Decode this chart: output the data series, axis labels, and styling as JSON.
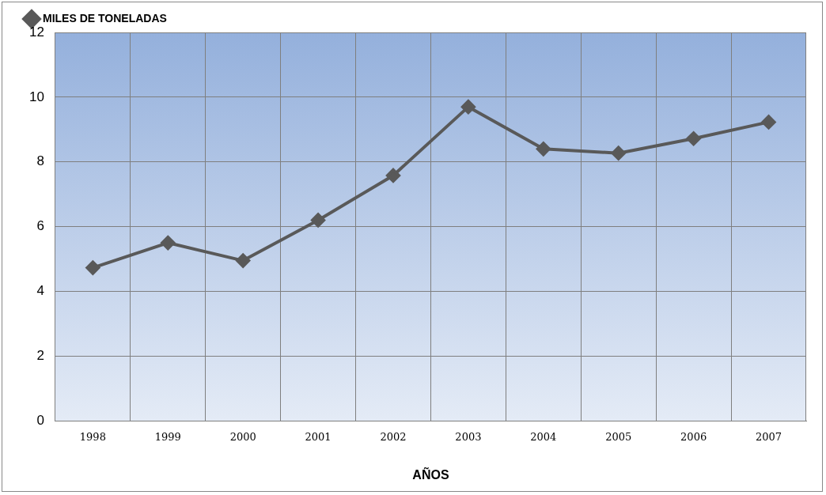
{
  "chart_data": {
    "type": "line",
    "xlabel": "AÑOS",
    "categories": [
      "1998",
      "1999",
      "2000",
      "2001",
      "2002",
      "2003",
      "2004",
      "2005",
      "2006",
      "2007"
    ],
    "series": [
      {
        "name": "MILES DE TONELADAS",
        "color": "#595959",
        "values": [
          4.73,
          5.5,
          4.95,
          6.2,
          7.58,
          9.7,
          8.4,
          8.27,
          8.72,
          9.23
        ]
      }
    ],
    "ylim": [
      0,
      12
    ],
    "yticks": [
      0,
      2,
      4,
      6,
      8,
      10,
      12
    ],
    "grid": true,
    "legend": "top left",
    "marker": "diamond",
    "line_style": "solid"
  }
}
